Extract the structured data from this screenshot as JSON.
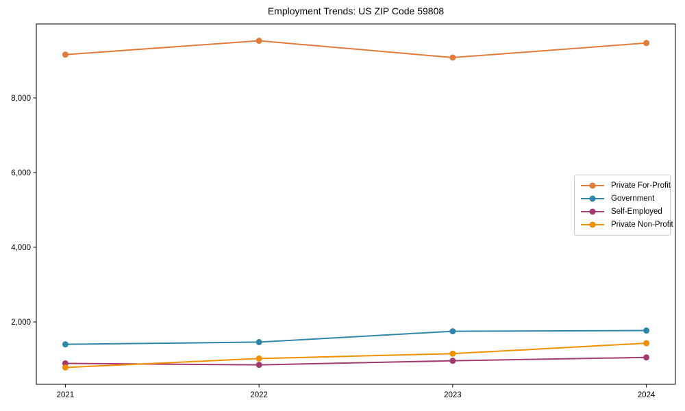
{
  "accent_colors": {
    "spine": "#000000",
    "background": "#ffffff",
    "legend_border": "#cccccc",
    "text": "#000000"
  },
  "chart_data": {
    "type": "line",
    "title": "Employment Trends: US ZIP Code 59808",
    "x": [
      2021,
      2022,
      2023,
      2024
    ],
    "xtick_labels": [
      "2021",
      "2022",
      "2023",
      "2024"
    ],
    "yticks": [
      2000,
      4000,
      6000,
      8000
    ],
    "ytick_labels": [
      "2,000",
      "4,000",
      "6,000",
      "8,000"
    ],
    "xlim": [
      2020.85,
      2024.15
    ],
    "ylim": [
      330,
      9980
    ],
    "grid": false,
    "legend_position": "center-right",
    "series": [
      {
        "name": "Private For-Profit",
        "color": "#e07b39",
        "values": [
          9160,
          9530,
          9080,
          9470
        ]
      },
      {
        "name": "Government",
        "color": "#2e86ab",
        "values": [
          1400,
          1460,
          1750,
          1770
        ]
      },
      {
        "name": "Self-Employed",
        "color": "#a23b72",
        "values": [
          890,
          850,
          960,
          1050
        ]
      },
      {
        "name": "Private Non-Profit",
        "color": "#f18f01",
        "values": [
          780,
          1020,
          1150,
          1430
        ]
      }
    ]
  }
}
